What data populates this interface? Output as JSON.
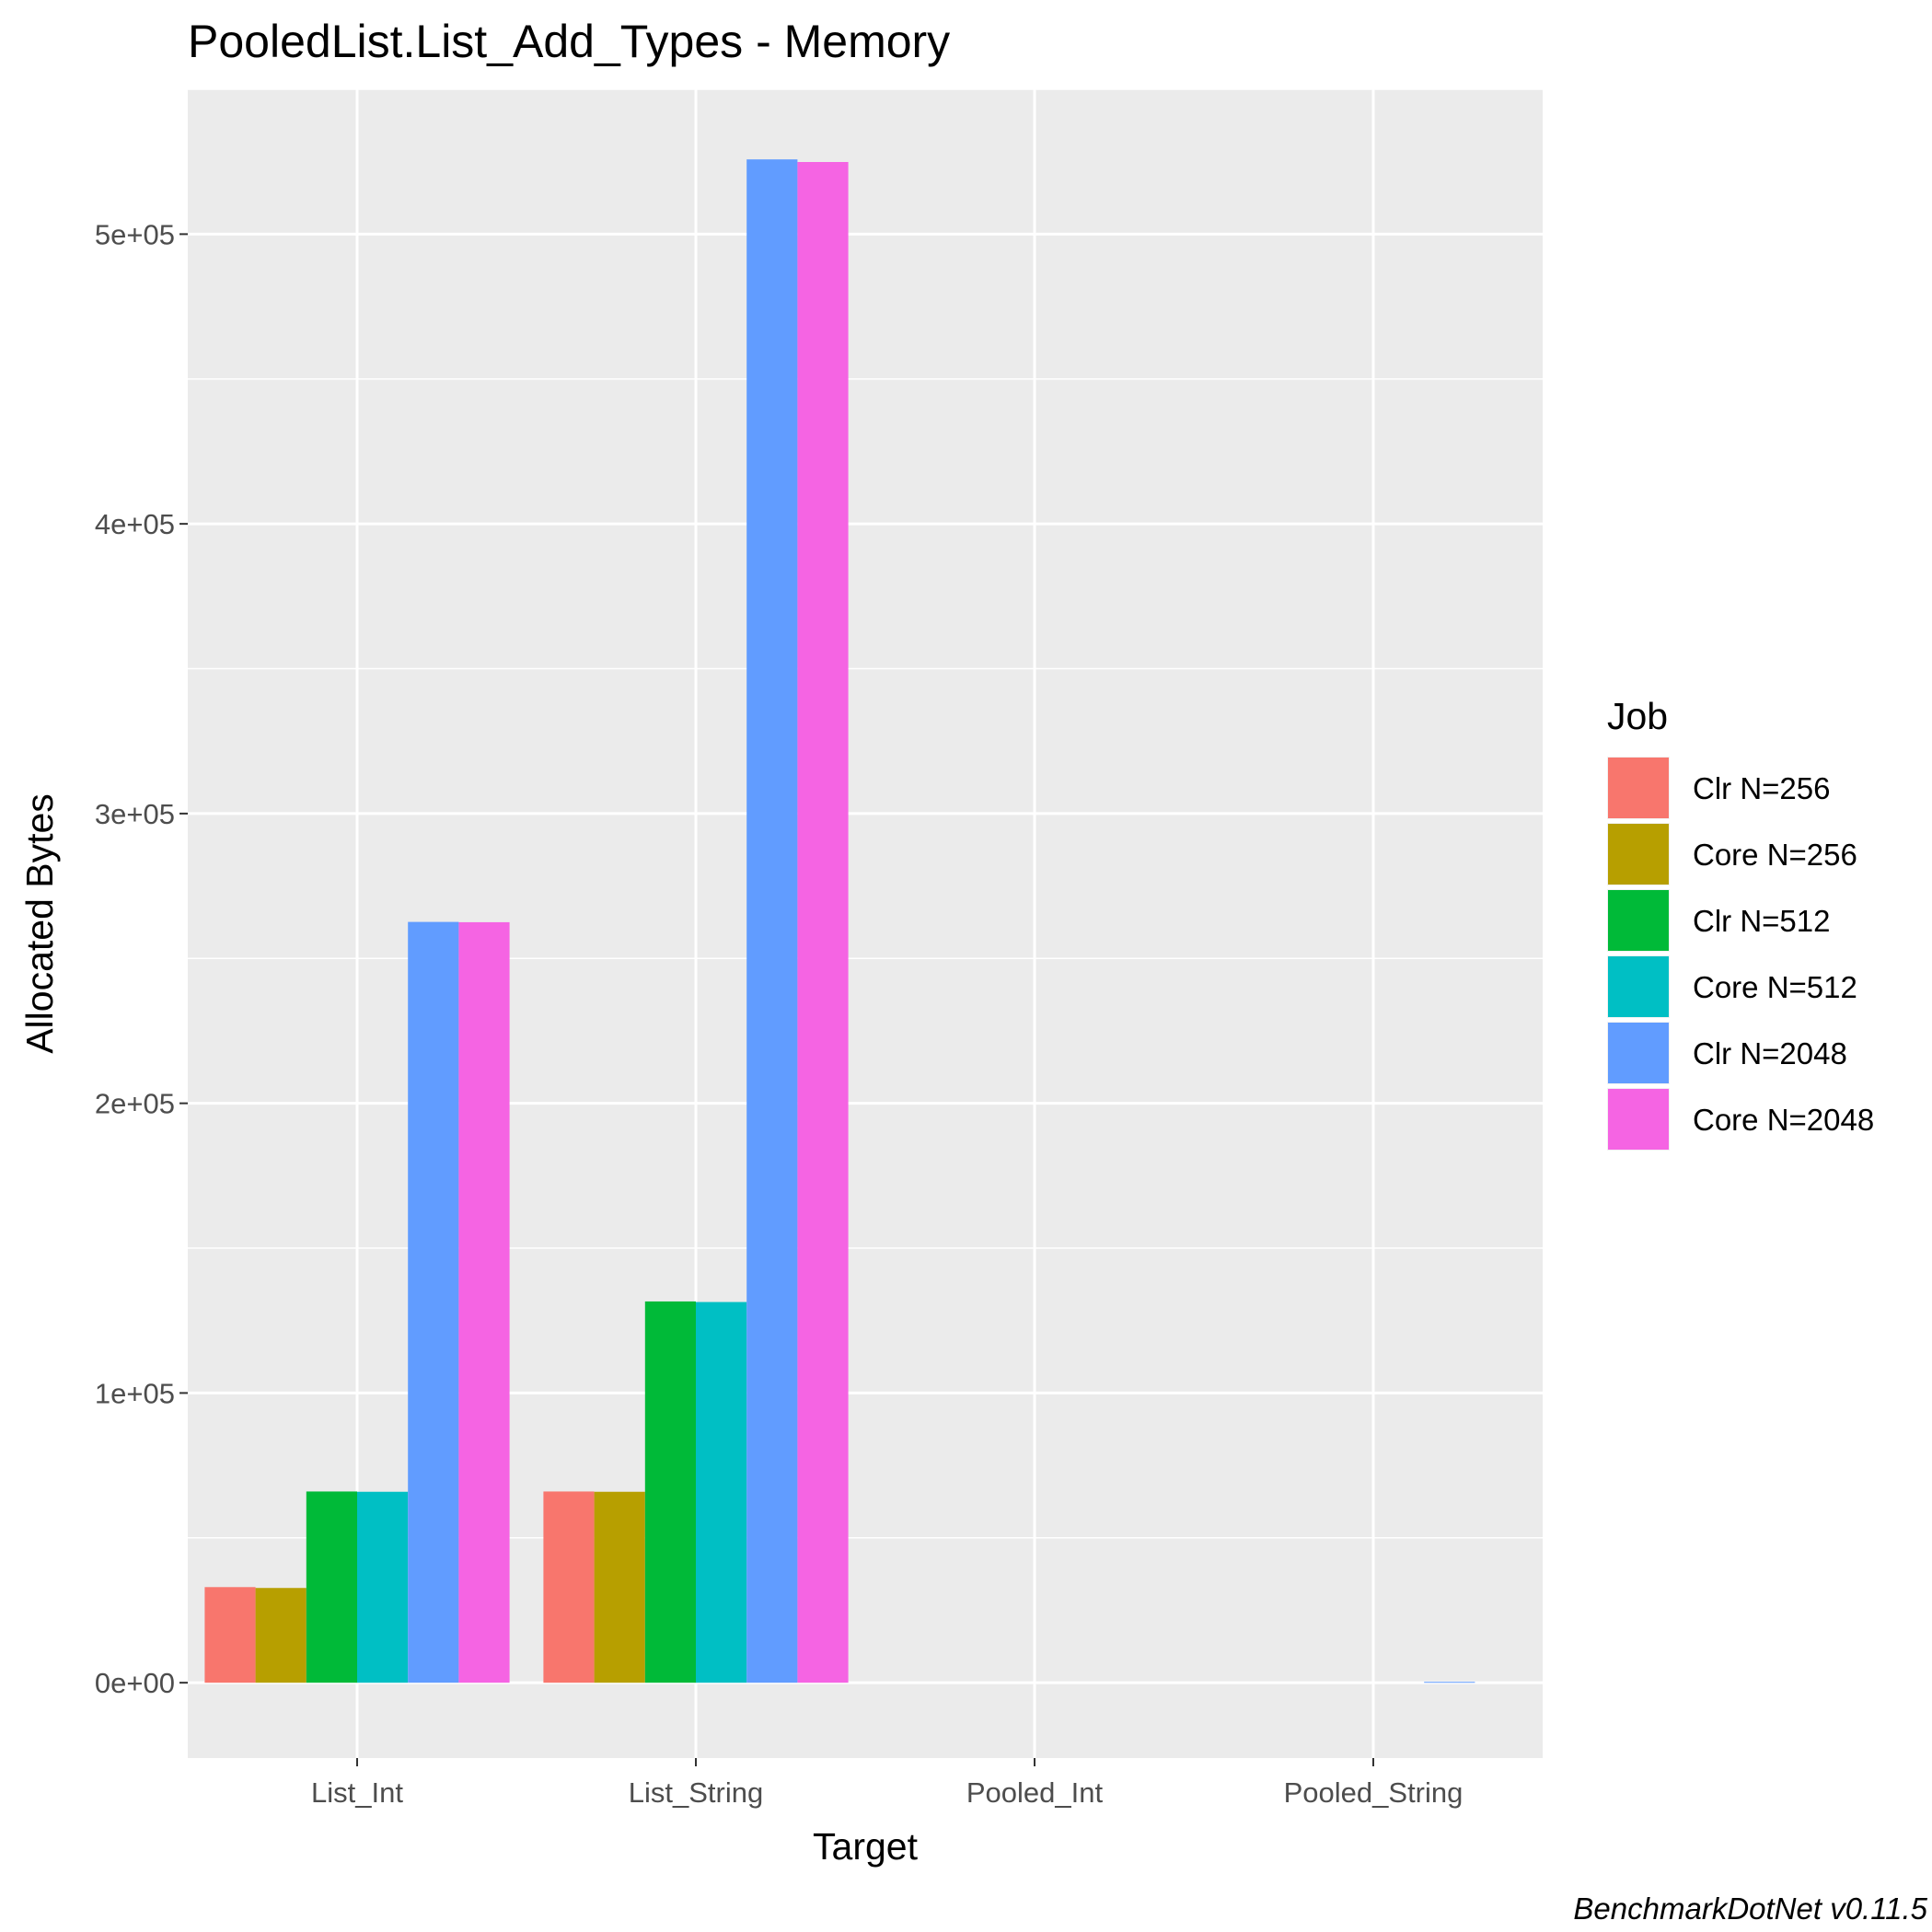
{
  "chart_data": {
    "type": "bar",
    "title": "PooledList.List_Add_Types - Memory",
    "xlabel": "Target",
    "ylabel": "Allocated  Bytes",
    "caption": "BenchmarkDotNet v0.11.5",
    "categories": [
      "List_Int",
      "List_String",
      "Pooled_Int",
      "Pooled_String"
    ],
    "ylim": [
      -26000,
      550000
    ],
    "yticks": [
      0,
      100000,
      200000,
      300000,
      400000,
      500000
    ],
    "ytick_labels": [
      "0e+00",
      "1e+05",
      "2e+05",
      "3e+05",
      "4e+05",
      "5e+05"
    ],
    "grid": true,
    "legend": {
      "title": "Job",
      "position": "right"
    },
    "series": [
      {
        "name": "Clr N=256",
        "color": "#F8766D",
        "values": [
          33000,
          66000,
          0,
          0
        ]
      },
      {
        "name": "Core N=256",
        "color": "#B79F00",
        "values": [
          32700,
          65900,
          0,
          0
        ]
      },
      {
        "name": "Clr N=512",
        "color": "#00BA38",
        "values": [
          66000,
          131600,
          0,
          0
        ]
      },
      {
        "name": "Core N=512",
        "color": "#00BFC4",
        "values": [
          65900,
          131400,
          0,
          0
        ]
      },
      {
        "name": "Clr N=2048",
        "color": "#619CFF",
        "values": [
          262600,
          525800,
          0,
          300
        ]
      },
      {
        "name": "Core N=2048",
        "color": "#F564E3",
        "values": [
          262500,
          524900,
          0,
          0
        ]
      }
    ]
  }
}
